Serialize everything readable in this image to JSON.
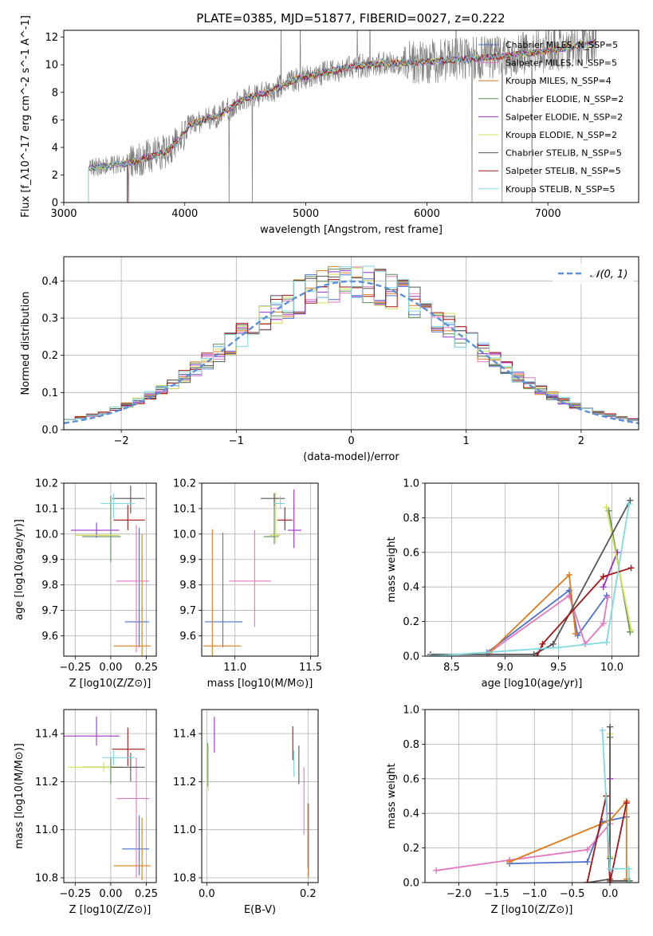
{
  "colors": {
    "Chabrier MILES": "#4c72d0",
    "Salpeter MILES": "#e377c2",
    "Kroupa MILES": "#e07b1a",
    "Chabrier ELODIE": "#5c8a5c",
    "Salpeter ELODIE": "#9b30c8",
    "Kroupa ELODIE": "#d4e157",
    "Chabrier STELIB": "#555555",
    "Salpeter STELIB": "#a31515",
    "Kroupa STELIB": "#80d8e0",
    "data": "#808080",
    "gauss": "#5b8fd8"
  },
  "chart_data": [
    {
      "id": "spectrum",
      "type": "line",
      "title": "PLATE=0385, MJD=51877, FIBERID=0027, z=0.222",
      "xlabel": "wavelength [Angstrom, rest frame]",
      "ylabel": "Flux [f_λ10^-17 erg cm^-2 s^-1 A^-1]",
      "xlim": [
        3000,
        7750
      ],
      "ylim": [
        0,
        12.5
      ],
      "xticks": [
        3000,
        4000,
        5000,
        6000,
        7000
      ],
      "yticks": [
        0,
        2,
        4,
        6,
        8,
        10,
        12
      ],
      "continuum": [
        [
          3200,
          2.5
        ],
        [
          3300,
          2.6
        ],
        [
          3400,
          2.7
        ],
        [
          3550,
          2.9
        ],
        [
          3700,
          3.3
        ],
        [
          3850,
          3.7
        ],
        [
          3950,
          4.6
        ],
        [
          4050,
          5.7
        ],
        [
          4300,
          6.4
        ],
        [
          4500,
          7.6
        ],
        [
          4700,
          8.0
        ],
        [
          4900,
          8.9
        ],
        [
          5100,
          9.3
        ],
        [
          5400,
          9.9
        ],
        [
          5700,
          10.1
        ],
        [
          6000,
          10.2
        ],
        [
          6300,
          10.4
        ],
        [
          6600,
          10.6
        ],
        [
          6900,
          10.9
        ],
        [
          7200,
          11.3
        ],
        [
          7400,
          11.6
        ]
      ],
      "legend": [
        "Chabrier MILES, N_SSP=5",
        "Salpeter MILES, N_SSP=5",
        "Kroupa MILES, N_SSP=4",
        "Chabrier ELODIE, N_SSP=2",
        "Salpeter ELODIE, N_SSP=2",
        "Kroupa ELODIE, N_SSP=2",
        "Chabrier STELIB, N_SSP=5",
        "Salpeter STELIB, N_SSP=5",
        "Kroupa STELIB, N_SSP=5"
      ],
      "legend_position": "right"
    },
    {
      "id": "residuals",
      "type": "histogram",
      "xlabel": "(data-model)/error",
      "ylabel": "Normed distribution",
      "xlim": [
        -2.5,
        2.5
      ],
      "ylim": [
        0,
        0.465
      ],
      "xticks": [
        -2,
        -1,
        0,
        1,
        2
      ],
      "yticks": [
        0.0,
        0.1,
        0.2,
        0.3,
        0.4
      ],
      "bin_width": 0.1,
      "reference": "N(0,1)",
      "legend": [
        "𝒩(0, 1)"
      ],
      "legend_position": "top-right"
    },
    {
      "id": "age-vs-Z",
      "type": "errorbar",
      "xlabel": "Z [log10(Z/Z⊙)]",
      "ylabel": "age  [log10(age/yr)]",
      "xlim": [
        -0.33,
        0.32
      ],
      "ylim": [
        9.52,
        10.2
      ],
      "xticks": [
        -0.25,
        0.0,
        0.25
      ],
      "yticks": [
        9.6,
        9.7,
        9.8,
        9.9,
        10.0,
        10.1,
        10.2
      ],
      "points": [
        {
          "s": "Chabrier MILES",
          "x": 0.2,
          "y": 9.655,
          "xerr": [
            0.1,
            0.07
          ],
          "yerr": [
            0.1,
            0.37
          ]
        },
        {
          "s": "Salpeter MILES",
          "x": 0.18,
          "y": 9.815,
          "xerr": [
            0.14,
            0.09
          ],
          "yerr": [
            0.28,
            0.22
          ]
        },
        {
          "s": "Kroupa MILES",
          "x": 0.22,
          "y": 9.56,
          "xerr": [
            0.2,
            0.06
          ],
          "yerr": [
            0.04,
            0.44
          ]
        },
        {
          "s": "Chabrier ELODIE",
          "x": 0.0,
          "y": 9.99,
          "xerr": [
            0.2,
            0.07
          ],
          "yerr": [
            0.1,
            0.16
          ]
        },
        {
          "s": "Salpeter ELODIE",
          "x": -0.1,
          "y": 10.015,
          "xerr": [
            0.18,
            0.16
          ],
          "yerr": [
            0.03,
            0.03
          ]
        },
        {
          "s": "Kroupa ELODIE",
          "x": -0.05,
          "y": 9.995,
          "xerr": [
            0.2,
            0.11
          ],
          "yerr": [
            0.01,
            0.01
          ]
        },
        {
          "s": "Chabrier STELIB",
          "x": 0.14,
          "y": 10.14,
          "xerr": [
            0.13,
            0.1
          ],
          "yerr": [
            0.06,
            0.05
          ]
        },
        {
          "s": "Salpeter STELIB",
          "x": 0.12,
          "y": 10.055,
          "xerr": [
            0.1,
            0.12
          ],
          "yerr": [
            0.04,
            0.06
          ]
        },
        {
          "s": "Kroupa STELIB",
          "x": 0.02,
          "y": 10.12,
          "xerr": [
            0.09,
            0.15
          ],
          "yerr": [
            0.06,
            0.04
          ]
        }
      ]
    },
    {
      "id": "age-vs-mass",
      "type": "errorbar",
      "xlabel": "mass [log10(M/M⊙)]",
      "ylabel": "",
      "xlim": [
        10.78,
        11.55
      ],
      "ylim": [
        9.52,
        10.2
      ],
      "xticks": [
        11.0,
        11.5
      ],
      "yticks": [
        9.6,
        9.7,
        9.8,
        9.9,
        10.0,
        10.1,
        10.2
      ],
      "points": [
        {
          "s": "Chabrier MILES",
          "x": 10.92,
          "y": 9.655,
          "xerr": [
            0.12,
            0.13
          ],
          "yerr": [
            0.1,
            0.35
          ]
        },
        {
          "s": "Salpeter MILES",
          "x": 11.13,
          "y": 9.815,
          "xerr": [
            0.17,
            0.11
          ],
          "yerr": [
            0.18,
            0.2
          ]
        },
        {
          "s": "Kroupa MILES",
          "x": 10.85,
          "y": 9.56,
          "xerr": [
            0.06,
            0.19
          ],
          "yerr": [
            0.04,
            0.46
          ]
        },
        {
          "s": "Chabrier ELODIE",
          "x": 11.26,
          "y": 9.99,
          "xerr": [
            0.07,
            0.03
          ],
          "yerr": [
            0.03,
            0.17
          ]
        },
        {
          "s": "Salpeter ELODIE",
          "x": 11.39,
          "y": 10.015,
          "xerr": [
            0.04,
            0.05
          ],
          "yerr": [
            0.07,
            0.16
          ]
        },
        {
          "s": "Kroupa ELODIE",
          "x": 11.27,
          "y": 9.995,
          "xerr": [
            0.04,
            0.03
          ],
          "yerr": [
            0.03,
            0.17
          ]
        },
        {
          "s": "Chabrier STELIB",
          "x": 11.26,
          "y": 10.14,
          "xerr": [
            0.09,
            0.07
          ],
          "yerr": [
            0.03,
            0.02
          ]
        },
        {
          "s": "Salpeter STELIB",
          "x": 11.33,
          "y": 10.055,
          "xerr": [
            0.05,
            0.05
          ],
          "yerr": [
            0.04,
            0.05
          ]
        },
        {
          "s": "Kroupa STELIB",
          "x": 11.3,
          "y": 10.12,
          "xerr": [
            0.04,
            0.03
          ],
          "yerr": [
            0.02,
            0.03
          ]
        }
      ]
    },
    {
      "id": "weight-vs-age",
      "type": "line",
      "xlabel": "age  [log10(age/yr)]",
      "ylabel": "mass weight",
      "xlim": [
        8.25,
        10.25
      ],
      "ylim": [
        0,
        1.0
      ],
      "xticks": [
        8.5,
        9.0,
        9.5,
        10.0
      ],
      "yticks": [
        0.0,
        0.2,
        0.4,
        0.6,
        0.8,
        1.0
      ],
      "series": [
        {
          "s": "Chabrier MILES",
          "points": [
            [
              8.83,
              0.02
            ],
            [
              9.6,
              0.38
            ],
            [
              9.68,
              0.12
            ],
            [
              9.95,
              0.35
            ]
          ]
        },
        {
          "s": "Salpeter MILES",
          "points": [
            [
              8.85,
              0.02
            ],
            [
              9.6,
              0.35
            ],
            [
              9.75,
              0.07
            ],
            [
              9.92,
              0.19
            ],
            [
              9.96,
              0.34
            ]
          ]
        },
        {
          "s": "Kroupa MILES",
          "points": [
            [
              8.85,
              0.02
            ],
            [
              9.6,
              0.47
            ],
            [
              9.66,
              0.13
            ]
          ]
        },
        {
          "s": "Chabrier ELODIE",
          "points": [
            [
              9.97,
              0.84
            ],
            [
              10.17,
              0.14
            ]
          ]
        },
        {
          "s": "Salpeter ELODIE",
          "points": [
            [
              9.92,
              0.4
            ],
            [
              10.05,
              0.6
            ]
          ]
        },
        {
          "s": "Kroupa ELODIE",
          "points": [
            [
              9.95,
              0.86
            ],
            [
              10.18,
              0.15
            ]
          ]
        },
        {
          "s": "Chabrier STELIB",
          "points": [
            [
              8.3,
              0.01
            ],
            [
              9.27,
              0.01
            ],
            [
              9.45,
              0.07
            ],
            [
              10.17,
              0.9
            ]
          ]
        },
        {
          "s": "Salpeter STELIB",
          "points": [
            [
              9.3,
              0.0
            ],
            [
              9.35,
              0.07
            ],
            [
              9.92,
              0.46
            ],
            [
              10.18,
              0.51
            ]
          ]
        },
        {
          "s": "Kroupa STELIB",
          "points": [
            [
              8.3,
              0.0
            ],
            [
              9.5,
              0.05
            ],
            [
              9.95,
              0.08
            ],
            [
              10.16,
              0.88
            ]
          ]
        }
      ]
    },
    {
      "id": "mass-vs-Z",
      "type": "errorbar",
      "xlabel": "Z [log10(Z/Z⊙)]",
      "ylabel": "mass [log10(M/M⊙)]",
      "xlim": [
        -0.33,
        0.32
      ],
      "ylim": [
        10.78,
        11.5
      ],
      "xticks": [
        -0.25,
        0.0,
        0.25
      ],
      "yticks": [
        10.8,
        11.0,
        11.2,
        11.4
      ],
      "points": [
        {
          "s": "Chabrier MILES",
          "x": 0.2,
          "y": 10.92,
          "xerr": [
            0.12,
            0.07
          ],
          "yerr": [
            0.11,
            0.14
          ]
        },
        {
          "s": "Salpeter MILES",
          "x": 0.18,
          "y": 11.13,
          "xerr": [
            0.14,
            0.09
          ],
          "yerr": [
            0.33,
            0.17
          ]
        },
        {
          "s": "Kroupa MILES",
          "x": 0.22,
          "y": 10.85,
          "xerr": [
            0.2,
            0.06
          ],
          "yerr": [
            0.06,
            0.2
          ]
        },
        {
          "s": "Chabrier ELODIE",
          "x": 0.0,
          "y": 11.26,
          "xerr": [
            0.2,
            0.08
          ],
          "yerr": [
            0.07,
            0.04
          ]
        },
        {
          "s": "Salpeter ELODIE",
          "x": -0.1,
          "y": 11.39,
          "xerr": [
            0.23,
            0.16
          ],
          "yerr": [
            0.04,
            0.08
          ]
        },
        {
          "s": "Kroupa ELODIE",
          "x": -0.05,
          "y": 11.26,
          "xerr": [
            0.25,
            0.11
          ],
          "yerr": [
            0.02,
            0.02
          ]
        },
        {
          "s": "Chabrier STELIB",
          "x": 0.14,
          "y": 11.26,
          "xerr": [
            0.14,
            0.1
          ],
          "yerr": [
            0.06,
            0.06
          ]
        },
        {
          "s": "Salpeter STELIB",
          "x": 0.12,
          "y": 11.335,
          "xerr": [
            0.11,
            0.12
          ],
          "yerr": [
            0.07,
            0.09
          ]
        },
        {
          "s": "Kroupa STELIB",
          "x": 0.02,
          "y": 11.3,
          "xerr": [
            0.08,
            0.15
          ],
          "yerr": [
            0.03,
            0.03
          ]
        }
      ]
    },
    {
      "id": "mass-vs-ebv",
      "type": "errorbar",
      "xlabel": "E(B-V)",
      "ylabel": "",
      "xlim": [
        -0.01,
        0.22
      ],
      "ylim": [
        10.78,
        11.5
      ],
      "xticks": [
        0.0,
        0.2
      ],
      "yticks": [
        10.8,
        11.0,
        11.2,
        11.4
      ],
      "points": [
        {
          "s": "Chabrier MILES",
          "x": 0.2,
          "y": 10.92,
          "yerr": [
            0.08,
            0.19
          ]
        },
        {
          "s": "Salpeter MILES",
          "x": 0.192,
          "y": 11.08,
          "yerr": [
            0.1,
            0.18
          ]
        },
        {
          "s": "Kroupa MILES",
          "x": 0.201,
          "y": 10.95,
          "yerr": [
            0.15,
            0.16
          ]
        },
        {
          "s": "Chabrier ELODIE",
          "x": 0.002,
          "y": 11.27,
          "yerr": [
            0.09,
            0.09
          ]
        },
        {
          "s": "Salpeter ELODIE",
          "x": 0.015,
          "y": 11.4,
          "yerr": [
            0.08,
            0.07
          ]
        },
        {
          "s": "Kroupa ELODIE",
          "x": 0.003,
          "y": 11.25,
          "yerr": [
            0.09,
            0.1
          ]
        },
        {
          "s": "Chabrier STELIB",
          "x": 0.182,
          "y": 11.27,
          "yerr": [
            0.08,
            0.08
          ]
        },
        {
          "s": "Salpeter STELIB",
          "x": 0.17,
          "y": 11.35,
          "yerr": [
            0.06,
            0.08
          ]
        },
        {
          "s": "Kroupa STELIB",
          "x": 0.172,
          "y": 11.27,
          "yerr": [
            0.05,
            0.06
          ]
        }
      ]
    },
    {
      "id": "weight-vs-Z",
      "type": "line",
      "xlabel": "Z [log10(Z/Z⊙)]",
      "ylabel": "mass weight",
      "xlim": [
        -2.45,
        0.38
      ],
      "ylim": [
        0,
        1.0
      ],
      "xticks": [
        -2.0,
        -1.5,
        -1.0,
        -0.5,
        0.0
      ],
      "yticks": [
        0.0,
        0.2,
        0.4,
        0.6,
        0.8,
        1.0
      ],
      "series": [
        {
          "s": "Chabrier MILES",
          "points": [
            [
              -1.33,
              0.11
            ],
            [
              -0.3,
              0.12
            ],
            [
              -0.1,
              0.35
            ],
            [
              0.22,
              0.38
            ]
          ]
        },
        {
          "s": "Salpeter MILES",
          "points": [
            [
              -2.3,
              0.07
            ],
            [
              -1.33,
              0.13
            ],
            [
              -0.3,
              0.19
            ],
            [
              0.0,
              0.34
            ]
          ]
        },
        {
          "s": "Kroupa MILES",
          "points": [
            [
              -1.33,
              0.12
            ],
            [
              0.0,
              0.36
            ],
            [
              0.22,
              0.47
            ],
            [
              0.22,
              0.02
            ]
          ]
        },
        {
          "s": "Chabrier ELODIE",
          "points": [
            [
              0.0,
              0.84
            ],
            [
              0.0,
              0.14
            ]
          ]
        },
        {
          "s": "Salpeter ELODIE",
          "points": [
            [
              0.0,
              0.6
            ],
            [
              0.0,
              0.4
            ]
          ]
        },
        {
          "s": "Kroupa ELODIE",
          "points": [
            [
              0.0,
              0.86
            ],
            [
              0.0,
              0.15
            ]
          ]
        },
        {
          "s": "Chabrier STELIB",
          "points": [
            [
              -0.3,
              0.0
            ],
            [
              0.0,
              0.02
            ],
            [
              0.0,
              0.9
            ],
            [
              0.0,
              0.01
            ],
            [
              0.26,
              0.01
            ]
          ]
        },
        {
          "s": "Salpeter STELIB",
          "points": [
            [
              -0.3,
              0.0
            ],
            [
              -0.05,
              0.5
            ],
            [
              0.0,
              0.0
            ],
            [
              0.22,
              0.46
            ]
          ]
        },
        {
          "s": "Kroupa STELIB",
          "points": [
            [
              -0.1,
              0.88
            ],
            [
              0.0,
              0.08
            ],
            [
              0.25,
              0.08
            ],
            [
              0.25,
              0.0
            ]
          ]
        }
      ]
    }
  ]
}
